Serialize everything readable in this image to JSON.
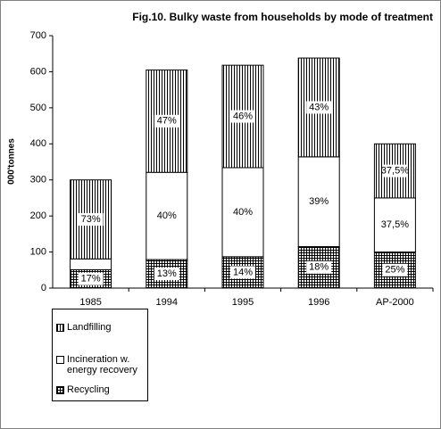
{
  "chart_data": {
    "type": "stacked-bar",
    "title": "Fig.10. Bulky waste from households by mode of treatment",
    "y_label": "000'tonnes",
    "categories": [
      "1985",
      "1994",
      "1995",
      "1996",
      "AP-2000"
    ],
    "series": [
      {
        "name": "Recycling",
        "pattern": "grid",
        "color": "#000000",
        "values": [
          51,
          79,
          87,
          115,
          100
        ],
        "labels": [
          "17%",
          "13%",
          "14%",
          "18%",
          "25%"
        ]
      },
      {
        "name": "Incineration w. energy recovery",
        "pattern": "none",
        "color": "#000000",
        "values": [
          30,
          242,
          247,
          249,
          150
        ],
        "labels": [
          null,
          "40%",
          "40%",
          "39%",
          "37,5%"
        ]
      },
      {
        "name": "Landfilling",
        "pattern": "vertical-lines",
        "color": "#000000",
        "values": [
          219,
          284,
          284,
          274,
          150
        ],
        "labels": [
          "73%",
          "47%",
          "46%",
          "43%",
          "37,5%"
        ]
      }
    ],
    "ylim": [
      0,
      700
    ],
    "yticks": [
      0,
      100,
      200,
      300,
      400,
      500,
      600,
      700
    ],
    "legend": "bottom-left"
  }
}
